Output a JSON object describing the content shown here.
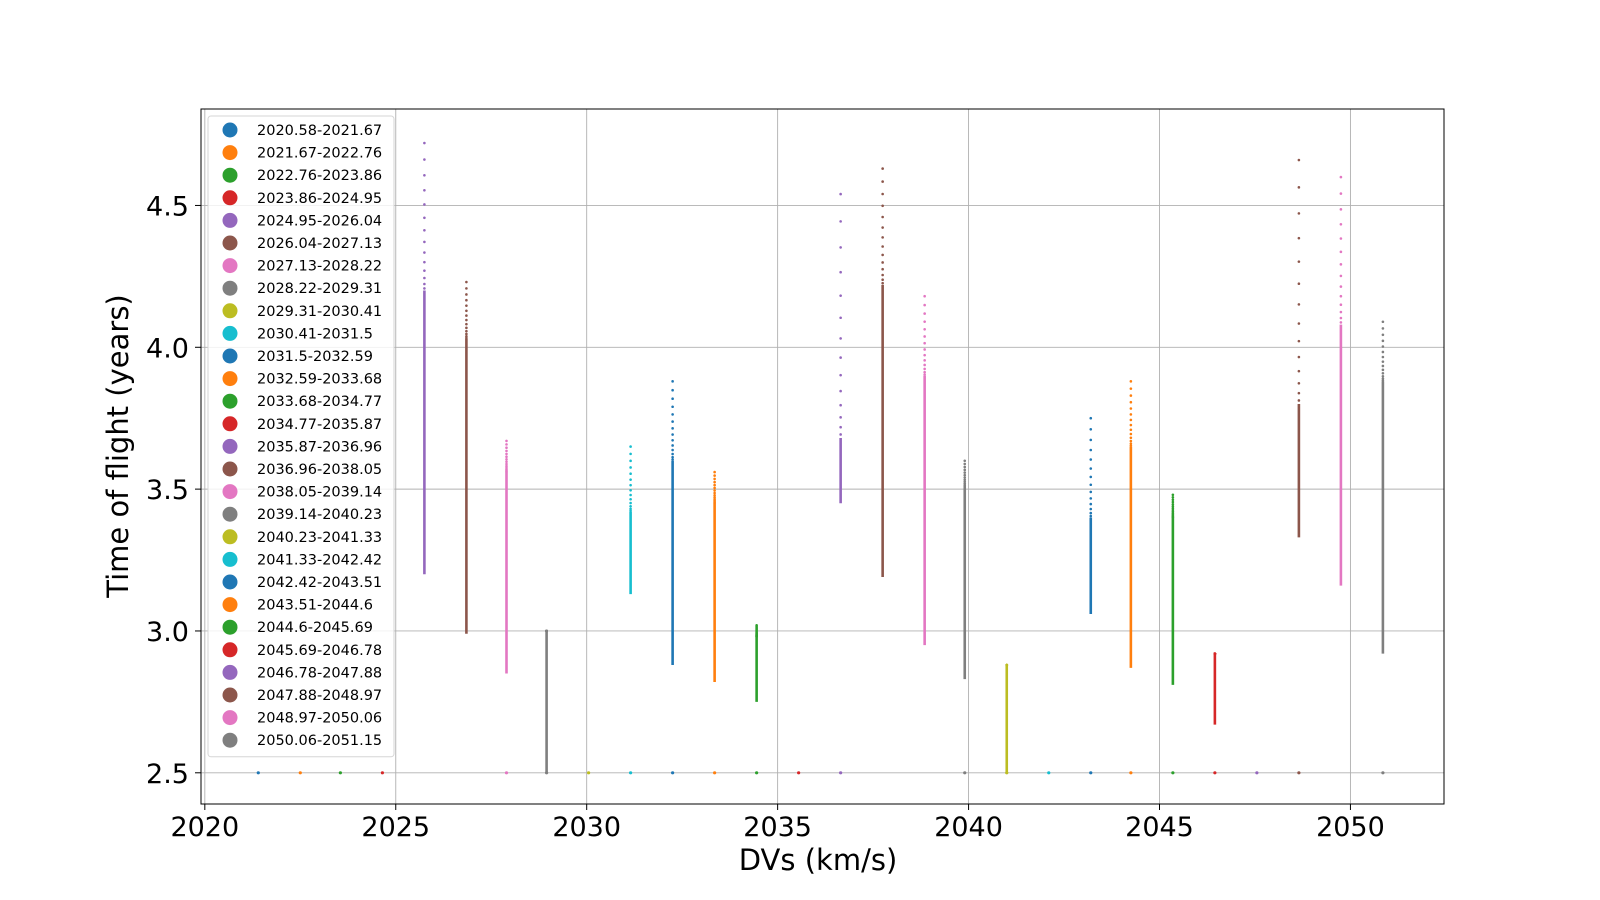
{
  "chart_data": {
    "type": "scatter",
    "title": "",
    "xlabel": "DVs (km/s)",
    "ylabel": "Time of flight (years)",
    "xlim": [
      2019.9,
      2052.45
    ],
    "ylim": [
      2.39,
      4.84
    ],
    "x_ticks": [
      2020,
      2025,
      2030,
      2035,
      2040,
      2045,
      2050
    ],
    "y_ticks": [
      2.5,
      3.0,
      3.5,
      4.0,
      4.5
    ],
    "x_tick_labels": [
      "2020",
      "2025",
      "2030",
      "2035",
      "2040",
      "2045",
      "2050"
    ],
    "y_tick_labels": [
      "2.5",
      "3.0",
      "3.5",
      "4.0",
      "4.5"
    ],
    "grid": true,
    "legend_position": "upper-left",
    "baseline_y": 2.5,
    "series": [
      {
        "name": "2020.58-2021.67",
        "color": "#1f77b4",
        "x": 2021.4,
        "baseline": true
      },
      {
        "name": "2021.67-2022.76",
        "color": "#ff7f0e",
        "x": 2022.5,
        "baseline": true
      },
      {
        "name": "2022.76-2023.86",
        "color": "#2ca02c",
        "x": 2023.55,
        "baseline": true
      },
      {
        "name": "2023.86-2024.95",
        "color": "#d62728",
        "x": 2024.65,
        "baseline": true
      },
      {
        "name": "2024.95-2026.04",
        "color": "#9467bd",
        "x": 2025.75,
        "baseline": false,
        "ymin": 3.2,
        "ymax": 4.72,
        "solid_top": 4.2
      },
      {
        "name": "2026.04-2027.13",
        "color": "#8c564b",
        "x": 2026.85,
        "baseline": false,
        "ymin": 2.99,
        "ymax": 4.23,
        "solid_top": 4.03
      },
      {
        "name": "2027.13-2028.22",
        "color": "#e377c2",
        "x": 2027.9,
        "baseline": true,
        "ymin": 2.85,
        "ymax": 3.67,
        "solid_top": 3.56
      },
      {
        "name": "2028.22-2029.31",
        "color": "#7f7f7f",
        "x": 2028.95,
        "baseline": true,
        "ymin": 2.5,
        "ymax": 3.0,
        "solid_top": 3.0
      },
      {
        "name": "2029.31-2030.41",
        "color": "#bcbd22",
        "x": 2030.05,
        "baseline": true
      },
      {
        "name": "2030.41-2031.5",
        "color": "#17becf",
        "x": 2031.15,
        "baseline": true,
        "ymin": 3.13,
        "ymax": 3.65,
        "solid_top": 3.42
      },
      {
        "name": "2031.5-2032.59",
        "color": "#1f77b4",
        "x": 2032.25,
        "baseline": true,
        "ymin": 2.88,
        "ymax": 3.88,
        "solid_top": 3.6
      },
      {
        "name": "2032.59-2033.68",
        "color": "#ff7f0e",
        "x": 2033.35,
        "baseline": true,
        "ymin": 2.82,
        "ymax": 3.56,
        "solid_top": 3.45
      },
      {
        "name": "2033.68-2034.77",
        "color": "#2ca02c",
        "x": 2034.45,
        "baseline": true,
        "ymin": 2.75,
        "ymax": 3.02,
        "solid_top": 2.98
      },
      {
        "name": "2034.77-2035.87",
        "color": "#d62728",
        "x": 2035.55,
        "baseline": true
      },
      {
        "name": "2035.87-2036.96",
        "color": "#9467bd",
        "x": 2036.65,
        "baseline": true,
        "ymin": 3.45,
        "ymax": 4.54,
        "solid_top": 3.68
      },
      {
        "name": "2036.96-2038.05",
        "color": "#8c564b",
        "x": 2037.75,
        "baseline": false,
        "ymin": 3.19,
        "ymax": 4.63,
        "solid_top": 4.22
      },
      {
        "name": "2038.05-2039.14",
        "color": "#e377c2",
        "x": 2038.85,
        "baseline": false,
        "ymin": 2.95,
        "ymax": 4.18,
        "solid_top": 3.9
      },
      {
        "name": "2039.14-2040.23",
        "color": "#7f7f7f",
        "x": 2039.9,
        "baseline": true,
        "ymin": 2.83,
        "ymax": 3.6,
        "solid_top": 3.5
      },
      {
        "name": "2040.23-2041.33",
        "color": "#bcbd22",
        "x": 2041.0,
        "baseline": true,
        "ymin": 2.5,
        "ymax": 2.88,
        "solid_top": 2.88
      },
      {
        "name": "2041.33-2042.42",
        "color": "#17becf",
        "x": 2042.1,
        "baseline": true
      },
      {
        "name": "2042.42-2043.51",
        "color": "#1f77b4",
        "x": 2043.2,
        "baseline": true,
        "ymin": 3.06,
        "ymax": 3.75,
        "solid_top": 3.4
      },
      {
        "name": "2043.51-2044.6",
        "color": "#ff7f0e",
        "x": 2044.25,
        "baseline": true,
        "ymin": 2.87,
        "ymax": 3.88,
        "solid_top": 3.65
      },
      {
        "name": "2044.6-2045.69",
        "color": "#2ca02c",
        "x": 2045.35,
        "baseline": true,
        "ymin": 2.81,
        "ymax": 3.48,
        "solid_top": 3.4
      },
      {
        "name": "2045.69-2046.78",
        "color": "#d62728",
        "x": 2046.45,
        "baseline": true,
        "ymin": 2.67,
        "ymax": 2.92,
        "solid_top": 2.92
      },
      {
        "name": "2046.78-2047.88",
        "color": "#9467bd",
        "x": 2047.55,
        "baseline": true
      },
      {
        "name": "2047.88-2048.97",
        "color": "#8c564b",
        "x": 2048.65,
        "baseline": true,
        "ymin": 3.33,
        "ymax": 4.66,
        "solid_top": 3.8
      },
      {
        "name": "2048.97-2050.06",
        "color": "#e377c2",
        "x": 2049.75,
        "baseline": false,
        "ymin": 3.16,
        "ymax": 4.6,
        "solid_top": 4.08
      },
      {
        "name": "2050.06-2051.15",
        "color": "#7f7f7f",
        "x": 2050.85,
        "baseline": true,
        "ymin": 2.92,
        "ymax": 4.09,
        "solid_top": 3.88
      }
    ]
  }
}
